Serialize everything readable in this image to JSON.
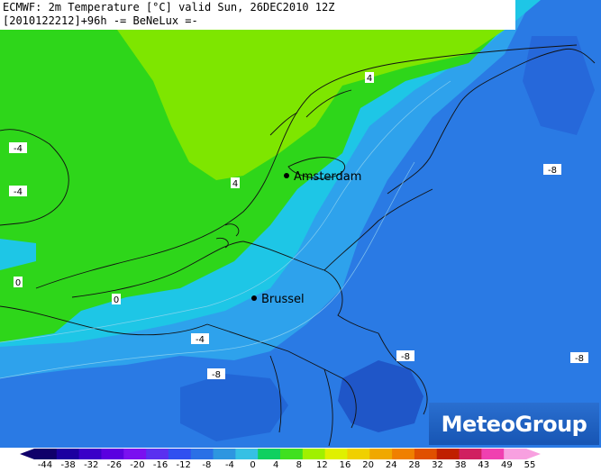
{
  "header": {
    "line1": "ECMWF: 2m Temperature [°C] valid Sun, 26DEC2010 12Z",
    "line2": "[2010122212]+96h -= BeNeLux =-"
  },
  "cities": [
    {
      "name": "Amsterdam"
    },
    {
      "name": "Brussel"
    }
  ],
  "contour_labels": [
    "4",
    "4",
    "-4",
    "-4",
    "-8",
    "0",
    "0",
    "-4",
    "-8",
    "-8",
    "-8"
  ],
  "logo": {
    "text": "MeteoGroup",
    "color": "#1f62c4"
  },
  "legend": {
    "ticks": [
      "-44",
      "-38",
      "-32",
      "-26",
      "-20",
      "-16",
      "-12",
      "-8",
      "-4",
      "0",
      "4",
      "8",
      "12",
      "16",
      "20",
      "24",
      "28",
      "32",
      "38",
      "43",
      "49",
      "55"
    ],
    "colors": [
      "#10006a",
      "#1c00a0",
      "#3a00c8",
      "#5a00e0",
      "#7a10f0",
      "#5a30f0",
      "#3050f0",
      "#2a70e6",
      "#2e96e0",
      "#36c0e4",
      "#10d060",
      "#40e020",
      "#a0f000",
      "#e0f000",
      "#f0d000",
      "#f0a800",
      "#f08000",
      "#e05000",
      "#c02000",
      "#d02060",
      "#f040b0",
      "#f8a0e0"
    ]
  },
  "colors": {
    "green_light": "#7ee600",
    "green": "#2ed61a",
    "cyan": "#1ec6e6",
    "blue_light": "#2ea2ec",
    "blue": "#2a7ae4",
    "blue_dark": "#1f56c8"
  }
}
